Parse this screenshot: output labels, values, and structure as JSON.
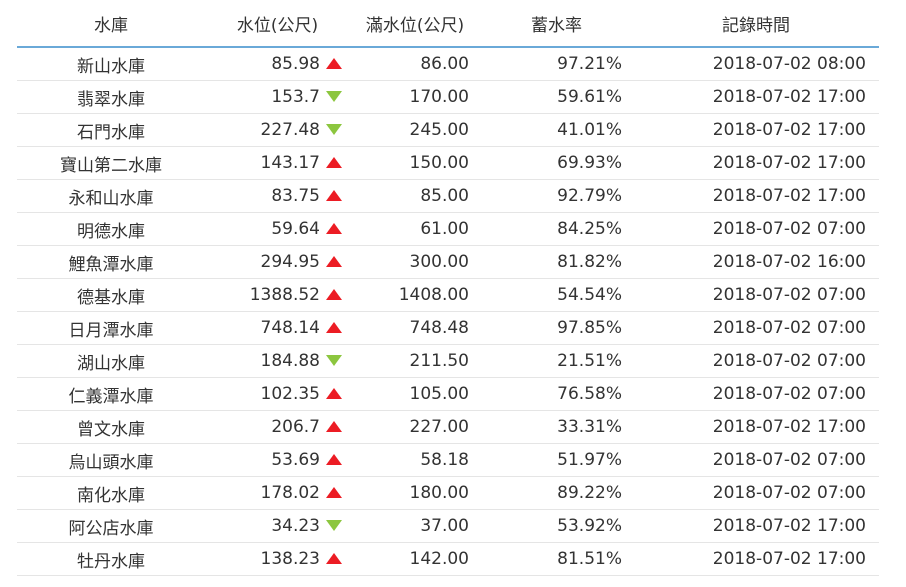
{
  "colors": {
    "header_rule": "#6aa9d8",
    "row_rule": "#e5e5e5",
    "up_arrow": "#ec1c24",
    "down_arrow": "#8cc63f",
    "text": "#333333"
  },
  "headers": {
    "name": "水庫",
    "level": "水位(公尺)",
    "full_level": "滿水位(公尺)",
    "rate": "蓄水率",
    "time": "記錄時間"
  },
  "rows": [
    {
      "name": "新山水庫",
      "level": "85.98",
      "trend": "up",
      "trend_icon": "up-arrow-icon",
      "full_level": "86.00",
      "rate": "97.21%",
      "time": "2018-07-02 08:00"
    },
    {
      "name": "翡翠水庫",
      "level": "153.7",
      "trend": "down",
      "trend_icon": "down-arrow-icon",
      "full_level": "170.00",
      "rate": "59.61%",
      "time": "2018-07-02 17:00"
    },
    {
      "name": "石門水庫",
      "level": "227.48",
      "trend": "down",
      "trend_icon": "down-arrow-icon",
      "full_level": "245.00",
      "rate": "41.01%",
      "time": "2018-07-02 17:00"
    },
    {
      "name": "寶山第二水庫",
      "level": "143.17",
      "trend": "up",
      "trend_icon": "up-arrow-icon",
      "full_level": "150.00",
      "rate": "69.93%",
      "time": "2018-07-02 17:00"
    },
    {
      "name": "永和山水庫",
      "level": "83.75",
      "trend": "up",
      "trend_icon": "up-arrow-icon",
      "full_level": "85.00",
      "rate": "92.79%",
      "time": "2018-07-02 17:00"
    },
    {
      "name": "明德水庫",
      "level": "59.64",
      "trend": "up",
      "trend_icon": "up-arrow-icon",
      "full_level": "61.00",
      "rate": "84.25%",
      "time": "2018-07-02 07:00"
    },
    {
      "name": "鯉魚潭水庫",
      "level": "294.95",
      "trend": "up",
      "trend_icon": "up-arrow-icon",
      "full_level": "300.00",
      "rate": "81.82%",
      "time": "2018-07-02 16:00"
    },
    {
      "name": "德基水庫",
      "level": "1388.52",
      "trend": "up",
      "trend_icon": "up-arrow-icon",
      "full_level": "1408.00",
      "rate": "54.54%",
      "time": "2018-07-02 07:00"
    },
    {
      "name": "日月潭水庫",
      "level": "748.14",
      "trend": "up",
      "trend_icon": "up-arrow-icon",
      "full_level": "748.48",
      "rate": "97.85%",
      "time": "2018-07-02 07:00"
    },
    {
      "name": "湖山水庫",
      "level": "184.88",
      "trend": "down",
      "trend_icon": "down-arrow-icon",
      "full_level": "211.50",
      "rate": "21.51%",
      "time": "2018-07-02 07:00"
    },
    {
      "name": "仁義潭水庫",
      "level": "102.35",
      "trend": "up",
      "trend_icon": "up-arrow-icon",
      "full_level": "105.00",
      "rate": "76.58%",
      "time": "2018-07-02 07:00"
    },
    {
      "name": "曾文水庫",
      "level": "206.7",
      "trend": "up",
      "trend_icon": "up-arrow-icon",
      "full_level": "227.00",
      "rate": "33.31%",
      "time": "2018-07-02 17:00"
    },
    {
      "name": "烏山頭水庫",
      "level": "53.69",
      "trend": "up",
      "trend_icon": "up-arrow-icon",
      "full_level": "58.18",
      "rate": "51.97%",
      "time": "2018-07-02 07:00"
    },
    {
      "name": "南化水庫",
      "level": "178.02",
      "trend": "up",
      "trend_icon": "up-arrow-icon",
      "full_level": "180.00",
      "rate": "89.22%",
      "time": "2018-07-02 07:00"
    },
    {
      "name": "阿公店水庫",
      "level": "34.23",
      "trend": "down",
      "trend_icon": "down-arrow-icon",
      "full_level": "37.00",
      "rate": "53.92%",
      "time": "2018-07-02 17:00"
    },
    {
      "name": "牡丹水庫",
      "level": "138.23",
      "trend": "up",
      "trend_icon": "up-arrow-icon",
      "full_level": "142.00",
      "rate": "81.51%",
      "time": "2018-07-02 17:00"
    }
  ]
}
